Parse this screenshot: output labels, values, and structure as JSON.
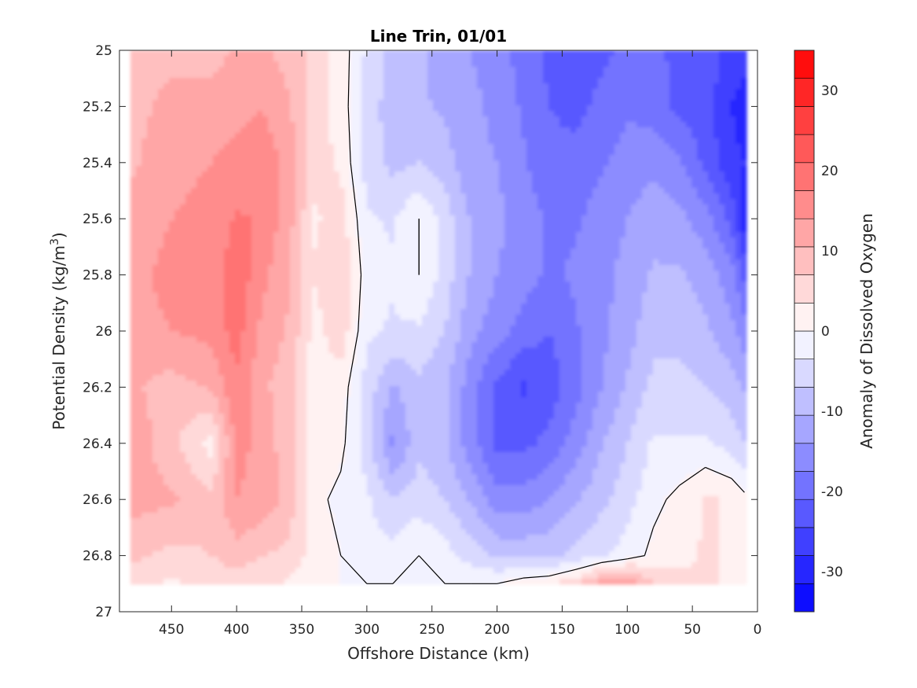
{
  "chart_data": {
    "type": "heatmap",
    "subtype": "filled-contour",
    "title": "Line Trin, 01/01",
    "xlabel": "Offshore Distance (km)",
    "ylabel": "Potential Density (kg/m",
    "ylabel_superscript": "3",
    "ylabel_suffix": ")",
    "colorbar_label": "Anomaly of Dissolved Oxygen",
    "xlim": [
      490,
      0
    ],
    "ylim": [
      27,
      25
    ],
    "x_reversed": true,
    "y_reversed": true,
    "xticks": [
      450,
      400,
      350,
      300,
      250,
      200,
      150,
      100,
      50,
      0
    ],
    "yticks": [
      25,
      25.2,
      25.4,
      25.6,
      25.8,
      26,
      26.2,
      26.4,
      26.6,
      26.8,
      27
    ],
    "ytick_labels": [
      "25",
      "25.2",
      "25.4",
      "25.6",
      "25.8",
      "26",
      "26.2",
      "26.4",
      "26.6",
      "26.8",
      "27"
    ],
    "colorbar_ticks": [
      30,
      20,
      10,
      0,
      -10,
      -20,
      -30
    ],
    "clim": [
      -35,
      35
    ],
    "contour_step": 3.5,
    "zero_contour_color": "#000000",
    "colors": {
      "max": "#ff0000",
      "zero": "#ffffff",
      "min": "#0000ff",
      "missing": "#ffffff"
    },
    "grid_x": [
      480,
      450,
      420,
      400,
      380,
      360,
      340,
      320,
      300,
      280,
      260,
      240,
      220,
      200,
      180,
      160,
      140,
      120,
      100,
      80,
      60,
      40,
      20,
      10
    ],
    "grid_y": [
      25,
      25.2,
      25.4,
      25.6,
      25.8,
      26,
      26.2,
      26.4,
      26.6,
      26.8,
      26.9
    ],
    "values": [
      [
        8,
        9,
        9,
        11,
        11,
        9,
        6,
        2,
        -4,
        -8,
        -10,
        -12,
        -14,
        -16,
        -19,
        -22,
        -24,
        -22,
        -20,
        -18,
        -24,
        -22,
        -26,
        -26
      ],
      [
        9,
        12,
        12,
        13,
        14,
        11,
        5,
        2,
        -5,
        -9,
        -10,
        -11,
        -13,
        -15,
        -18,
        -21,
        -22,
        -20,
        -18,
        -19,
        -22,
        -23,
        -28,
        -30
      ],
      [
        10,
        13,
        14,
        15,
        16,
        13,
        5,
        3,
        -5,
        -8,
        -7,
        -9,
        -13,
        -14,
        -17,
        -20,
        -20,
        -18,
        -16,
        -15,
        -17,
        -22,
        -27,
        -28
      ],
      [
        12,
        14,
        15,
        18,
        17,
        12,
        3,
        5,
        -3,
        -4,
        0,
        -5,
        -11,
        -13,
        -16,
        -18,
        -18,
        -16,
        -14,
        -12,
        -13,
        -16,
        -22,
        -30
      ],
      [
        13,
        15,
        15,
        20,
        15,
        11,
        4,
        7,
        -2,
        -3,
        0,
        -5,
        -11,
        -14,
        -16,
        -18,
        -17,
        -15,
        -13,
        -10,
        -10,
        -12,
        -16,
        -22
      ],
      [
        13,
        14,
        15,
        19,
        13,
        10,
        2,
        6,
        -3,
        -4,
        -4,
        -7,
        -13,
        -16,
        -19,
        -21,
        -18,
        -15,
        -12,
        -8,
        -8,
        -10,
        -13,
        -16
      ],
      [
        11,
        9,
        11,
        17,
        11,
        9,
        1,
        2,
        -5,
        -11,
        -8,
        -10,
        -16,
        -22,
        -25,
        -23,
        -19,
        -14,
        -10,
        -6,
        -6,
        -7,
        -9,
        -11
      ],
      [
        13,
        8,
        2,
        15,
        13,
        8,
        2,
        1,
        -5,
        -15,
        -8,
        -10,
        -16,
        -22,
        -22,
        -20,
        -16,
        -11,
        -7,
        -3,
        -3,
        -3,
        -5,
        -7
      ],
      [
        12,
        11,
        8,
        14,
        13,
        9,
        1,
        -1,
        -3,
        -7,
        -5,
        -7,
        -11,
        -16,
        -16,
        -14,
        -11,
        -8,
        -5,
        -1,
        1,
        4,
        3,
        1
      ],
      [
        8,
        6,
        7,
        9,
        7,
        6,
        2,
        0,
        -2,
        -2,
        0,
        -2,
        -5,
        -8,
        -8,
        -8,
        -6,
        -4,
        -2,
        1,
        2,
        4,
        3,
        1
      ],
      [
        4,
        3,
        4,
        5,
        4,
        3,
        1,
        0,
        0,
        0,
        0,
        0,
        0,
        0,
        2,
        3,
        6,
        12,
        15,
        7,
        5,
        4,
        3,
        1
      ]
    ]
  }
}
